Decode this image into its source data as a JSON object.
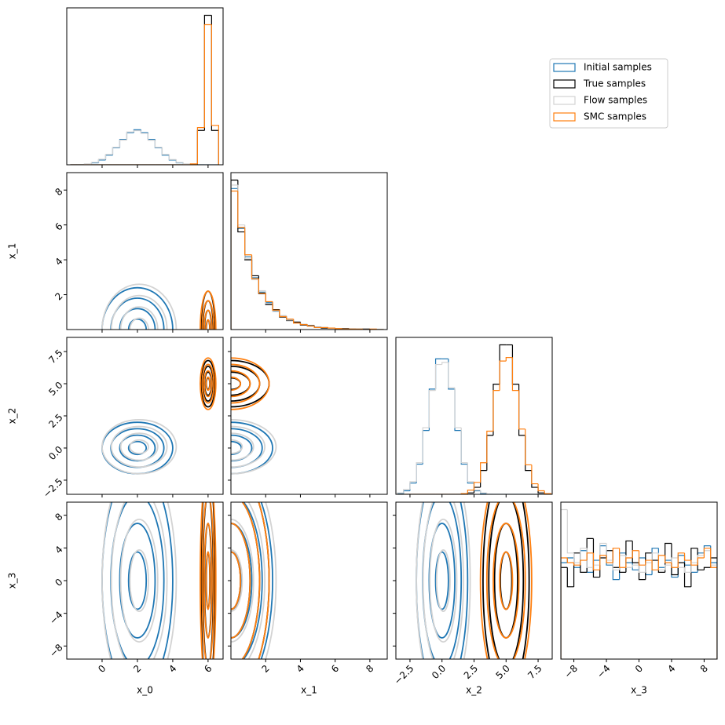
{
  "chart_data": {
    "type": "corner",
    "variables": [
      "x_0",
      "x_1",
      "x_2",
      "x_3"
    ],
    "lims": [
      [
        -2,
        6.85
      ],
      [
        0,
        9
      ],
      [
        -3.6,
        8.6
      ],
      [
        -9.6,
        9.6
      ]
    ],
    "ticks": [
      [
        0,
        2,
        4,
        6
      ],
      [
        2,
        4,
        6,
        8
      ],
      [
        {
          "value": -2.5,
          "label": "−2.5"
        },
        {
          "value": 0,
          "label": "0.0"
        },
        2.5,
        {
          "value": 5,
          "label": "5.0"
        },
        7.5
      ],
      [
        {
          "value": -8,
          "label": "−8"
        },
        {
          "value": -4,
          "label": "−4"
        },
        0,
        4,
        8
      ]
    ],
    "bins": [
      [
        -1.8,
        -1.4,
        -1.0,
        -0.6,
        -0.2,
        0.2,
        0.6,
        1.0,
        1.4,
        1.8,
        2.2,
        2.6,
        3.0,
        3.4,
        3.8,
        4.2,
        4.6,
        5.0,
        5.4,
        5.8,
        6.2,
        6.6
      ],
      [
        0,
        0.4,
        0.8,
        1.2,
        1.6,
        2.0,
        2.4,
        2.8,
        3.2,
        3.6,
        4.0,
        4.4,
        4.8,
        5.2,
        5.6,
        6.0,
        6.4,
        6.8,
        7.2,
        7.6,
        8.0,
        8.4,
        8.8
      ],
      [
        -3.5,
        -3.0,
        -2.5,
        -2.0,
        -1.5,
        -1.0,
        -0.5,
        0,
        0.5,
        1.0,
        1.5,
        2.0,
        2.5,
        3.0,
        3.5,
        4.0,
        4.5,
        5.0,
        5.5,
        6.0,
        6.5,
        7.0,
        7.5,
        8.0,
        8.5
      ],
      [
        -9.6,
        -8.8,
        -8,
        -7.2,
        -6.4,
        -5.6,
        -4.8,
        -4,
        -3.2,
        -2.4,
        -1.6,
        -0.8,
        0,
        0.8,
        1.6,
        2.4,
        3.2,
        4,
        4.8,
        5.6,
        6.4,
        7.2,
        8,
        8.8,
        9.6
      ]
    ],
    "legend": "upper right",
    "series": [
      {
        "name": "Initial samples",
        "color": "#1f77b4",
        "counts": [
          [
            0,
            1,
            3,
            9,
            22,
            44,
            78,
            116,
            147,
            160,
            147,
            116,
            78,
            44,
            22,
            9,
            3,
            1,
            0,
            0,
            0
          ],
          [
            283,
            203,
            146,
            104,
            75,
            54,
            38,
            27,
            20,
            14,
            10,
            7,
            5,
            4,
            3,
            2,
            1,
            1,
            1,
            0,
            0,
            0
          ],
          [
            1,
            5,
            16,
            43,
            91,
            150,
            193,
            193,
            150,
            91,
            43,
            16,
            5,
            1,
            0,
            0,
            0,
            0,
            0,
            0,
            0,
            0,
            0,
            0
          ],
          [
            40,
            42,
            38,
            45,
            36,
            41,
            47,
            39,
            33,
            44,
            40,
            37,
            42,
            35,
            46,
            38,
            41,
            34,
            43,
            39,
            36,
            44,
            47,
            40
          ]
        ],
        "center": [
          2.0,
          0,
          0.0,
          0
        ],
        "spread": [
          1.0,
          1.2,
          1.0,
          7.0
        ]
      },
      {
        "name": "True samples",
        "color": "#000000",
        "counts": [
          [
            0,
            0,
            0,
            0,
            0,
            0,
            0,
            0,
            0,
            0,
            0,
            0,
            0,
            0,
            0,
            0,
            0,
            2,
            157,
            683,
            157
          ],
          [
            300,
            196,
            140,
            108,
            72,
            50,
            40,
            25,
            18,
            15,
            9,
            8,
            5,
            3,
            3,
            2,
            2,
            1,
            0,
            1,
            0,
            0
          ],
          [
            0,
            0,
            0,
            0,
            0,
            0,
            0,
            0,
            0,
            0,
            0,
            2,
            10,
            34,
            84,
            157,
            213,
            213,
            157,
            84,
            34,
            10,
            2,
            0
          ],
          [
            38,
            30,
            44,
            36,
            50,
            34,
            42,
            45,
            38,
            36,
            49,
            40,
            33,
            44,
            41,
            36,
            48,
            35,
            40,
            30,
            46,
            37,
            38,
            42
          ]
        ],
        "center": [
          6.0,
          0,
          5.0,
          0
        ],
        "spread": [
          0.2,
          1.1,
          0.9,
          7.0
        ]
      },
      {
        "name": "Flow samples",
        "color": "#d3d3d3",
        "counts": [
          [
            0,
            1,
            4,
            11,
            25,
            47,
            80,
            113,
            150,
            156,
            144,
            112,
            80,
            47,
            24,
            10,
            4,
            1,
            0,
            0,
            0
          ],
          [
            290,
            210,
            142,
            100,
            78,
            52,
            36,
            28,
            19,
            13,
            11,
            6,
            5,
            4,
            2,
            2,
            1,
            1,
            0,
            0,
            0,
            0
          ],
          [
            2,
            7,
            18,
            45,
            95,
            148,
            185,
            188,
            152,
            95,
            45,
            18,
            6,
            2,
            0,
            0,
            0,
            0,
            0,
            0,
            0,
            0,
            0,
            0
          ],
          [
            62,
            44,
            40,
            46,
            38,
            39,
            48,
            41,
            37,
            43,
            38,
            39,
            36,
            40,
            44,
            37,
            39,
            42,
            38,
            36,
            40,
            43,
            45,
            39
          ]
        ],
        "center": [
          2.1,
          0,
          0.1,
          0
        ],
        "spread": [
          1.05,
          1.3,
          1.05,
          7.5
        ]
      },
      {
        "name": "SMC samples",
        "color": "#ff7f0e",
        "counts": [
          [
            0,
            0,
            0,
            0,
            0,
            0,
            0,
            0,
            0,
            0,
            0,
            0,
            0,
            0,
            0,
            0,
            0,
            4,
            170,
            640,
            180
          ],
          [
            278,
            205,
            150,
            102,
            73,
            56,
            39,
            26,
            21,
            13,
            10,
            7,
            4,
            4,
            3,
            2,
            1,
            1,
            1,
            0,
            1,
            0
          ],
          [
            0,
            0,
            0,
            0,
            0,
            0,
            0,
            0,
            0,
            0,
            1,
            6,
            17,
            45,
            90,
            148,
            190,
            195,
            148,
            93,
            42,
            15,
            5,
            1
          ],
          [
            42,
            40,
            39,
            41,
            44,
            37,
            43,
            40,
            46,
            38,
            42,
            45,
            39,
            41,
            37,
            43,
            40,
            38,
            44,
            41,
            39,
            42,
            46,
            38
          ]
        ],
        "center": [
          6.0,
          0,
          5.0,
          0
        ],
        "spread": [
          0.22,
          1.1,
          1.0,
          7.0
        ]
      }
    ]
  }
}
